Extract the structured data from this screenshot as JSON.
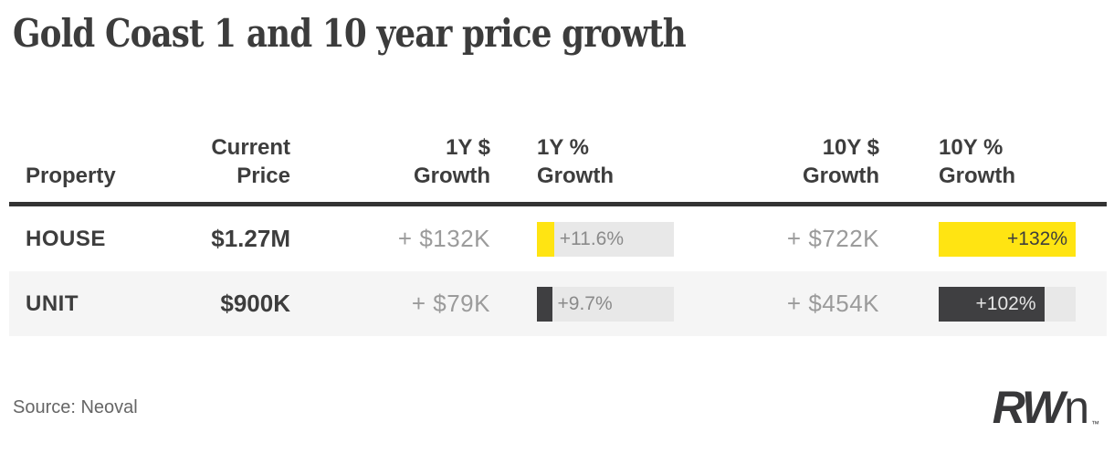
{
  "title": "Gold Coast 1 and 10 year price growth",
  "source": "Source: Neoval",
  "logo": {
    "bold": "RW",
    "light": "n",
    "tm": "™"
  },
  "colors": {
    "brand_yellow": "#ffe412",
    "charcoal": "#3f3f41",
    "bar_track": "#e8e8e8",
    "row_alt": "#f5f5f5",
    "divider": "#333333",
    "text_dark": "#3d3d3d",
    "text_light": "#9b9b9b"
  },
  "table": {
    "headers": {
      "property": "Property",
      "current_price": "Current\nPrice",
      "growth_1y_dollar": "1Y $\nGrowth",
      "growth_1y_pct": "1Y %\nGrowth",
      "growth_10y_dollar": "10Y $\nGrowth",
      "growth_10y_pct": "10Y %\nGrowth"
    },
    "rows": [
      {
        "property": "HOUSE",
        "current_price": "$1.27M",
        "growth_1y_dollar": "+ $132K",
        "growth_10y_dollar": "+ $722K",
        "bar_1y": {
          "label": "+11.6%",
          "fraction": 0.125,
          "color": "#ffe412",
          "label_color": "#8a8a8a"
        },
        "bar_10y": {
          "label": "+132%",
          "fraction": 1,
          "color": "#ffe412",
          "label_color": "#3d3d3d"
        }
      },
      {
        "property": "UNIT",
        "current_price": "$900K",
        "growth_1y_dollar": "+ $79K",
        "growth_10y_dollar": "+ $454K",
        "bar_1y": {
          "label": "+9.7%",
          "fraction": 0.11,
          "color": "#3f3f41",
          "label_color": "#8a8a8a"
        },
        "bar_10y": {
          "label": "+102%",
          "fraction": 0.77,
          "color": "#3f3f41",
          "label_color": "#e5e5e5"
        }
      }
    ]
  },
  "chart_data": {
    "type": "table",
    "title": "Gold Coast 1 and 10 year price growth",
    "columns": [
      "Property",
      "Current Price",
      "1Y $ Growth",
      "1Y % Growth",
      "10Y $ Growth",
      "10Y % Growth"
    ],
    "rows": [
      {
        "property": "HOUSE",
        "current_price": "$1.27M",
        "growth_1y_dollars": "+ $132K",
        "growth_1y_pct": 11.6,
        "growth_10y_dollars": "+ $722K",
        "growth_10y_pct": 132
      },
      {
        "property": "UNIT",
        "current_price": "$900K",
        "growth_1y_dollars": "+ $79K",
        "growth_1y_pct": 9.7,
        "growth_10y_dollars": "+ $454K",
        "growth_10y_pct": 102
      }
    ],
    "bar_notes": "1Y % and 10Y % cells rendered as horizontal bars; HOUSE bars yellow, UNIT bars charcoal; 10Y bars scaled to max 132%",
    "source": "Source: Neoval",
    "legend_position": "none",
    "grid": false
  }
}
